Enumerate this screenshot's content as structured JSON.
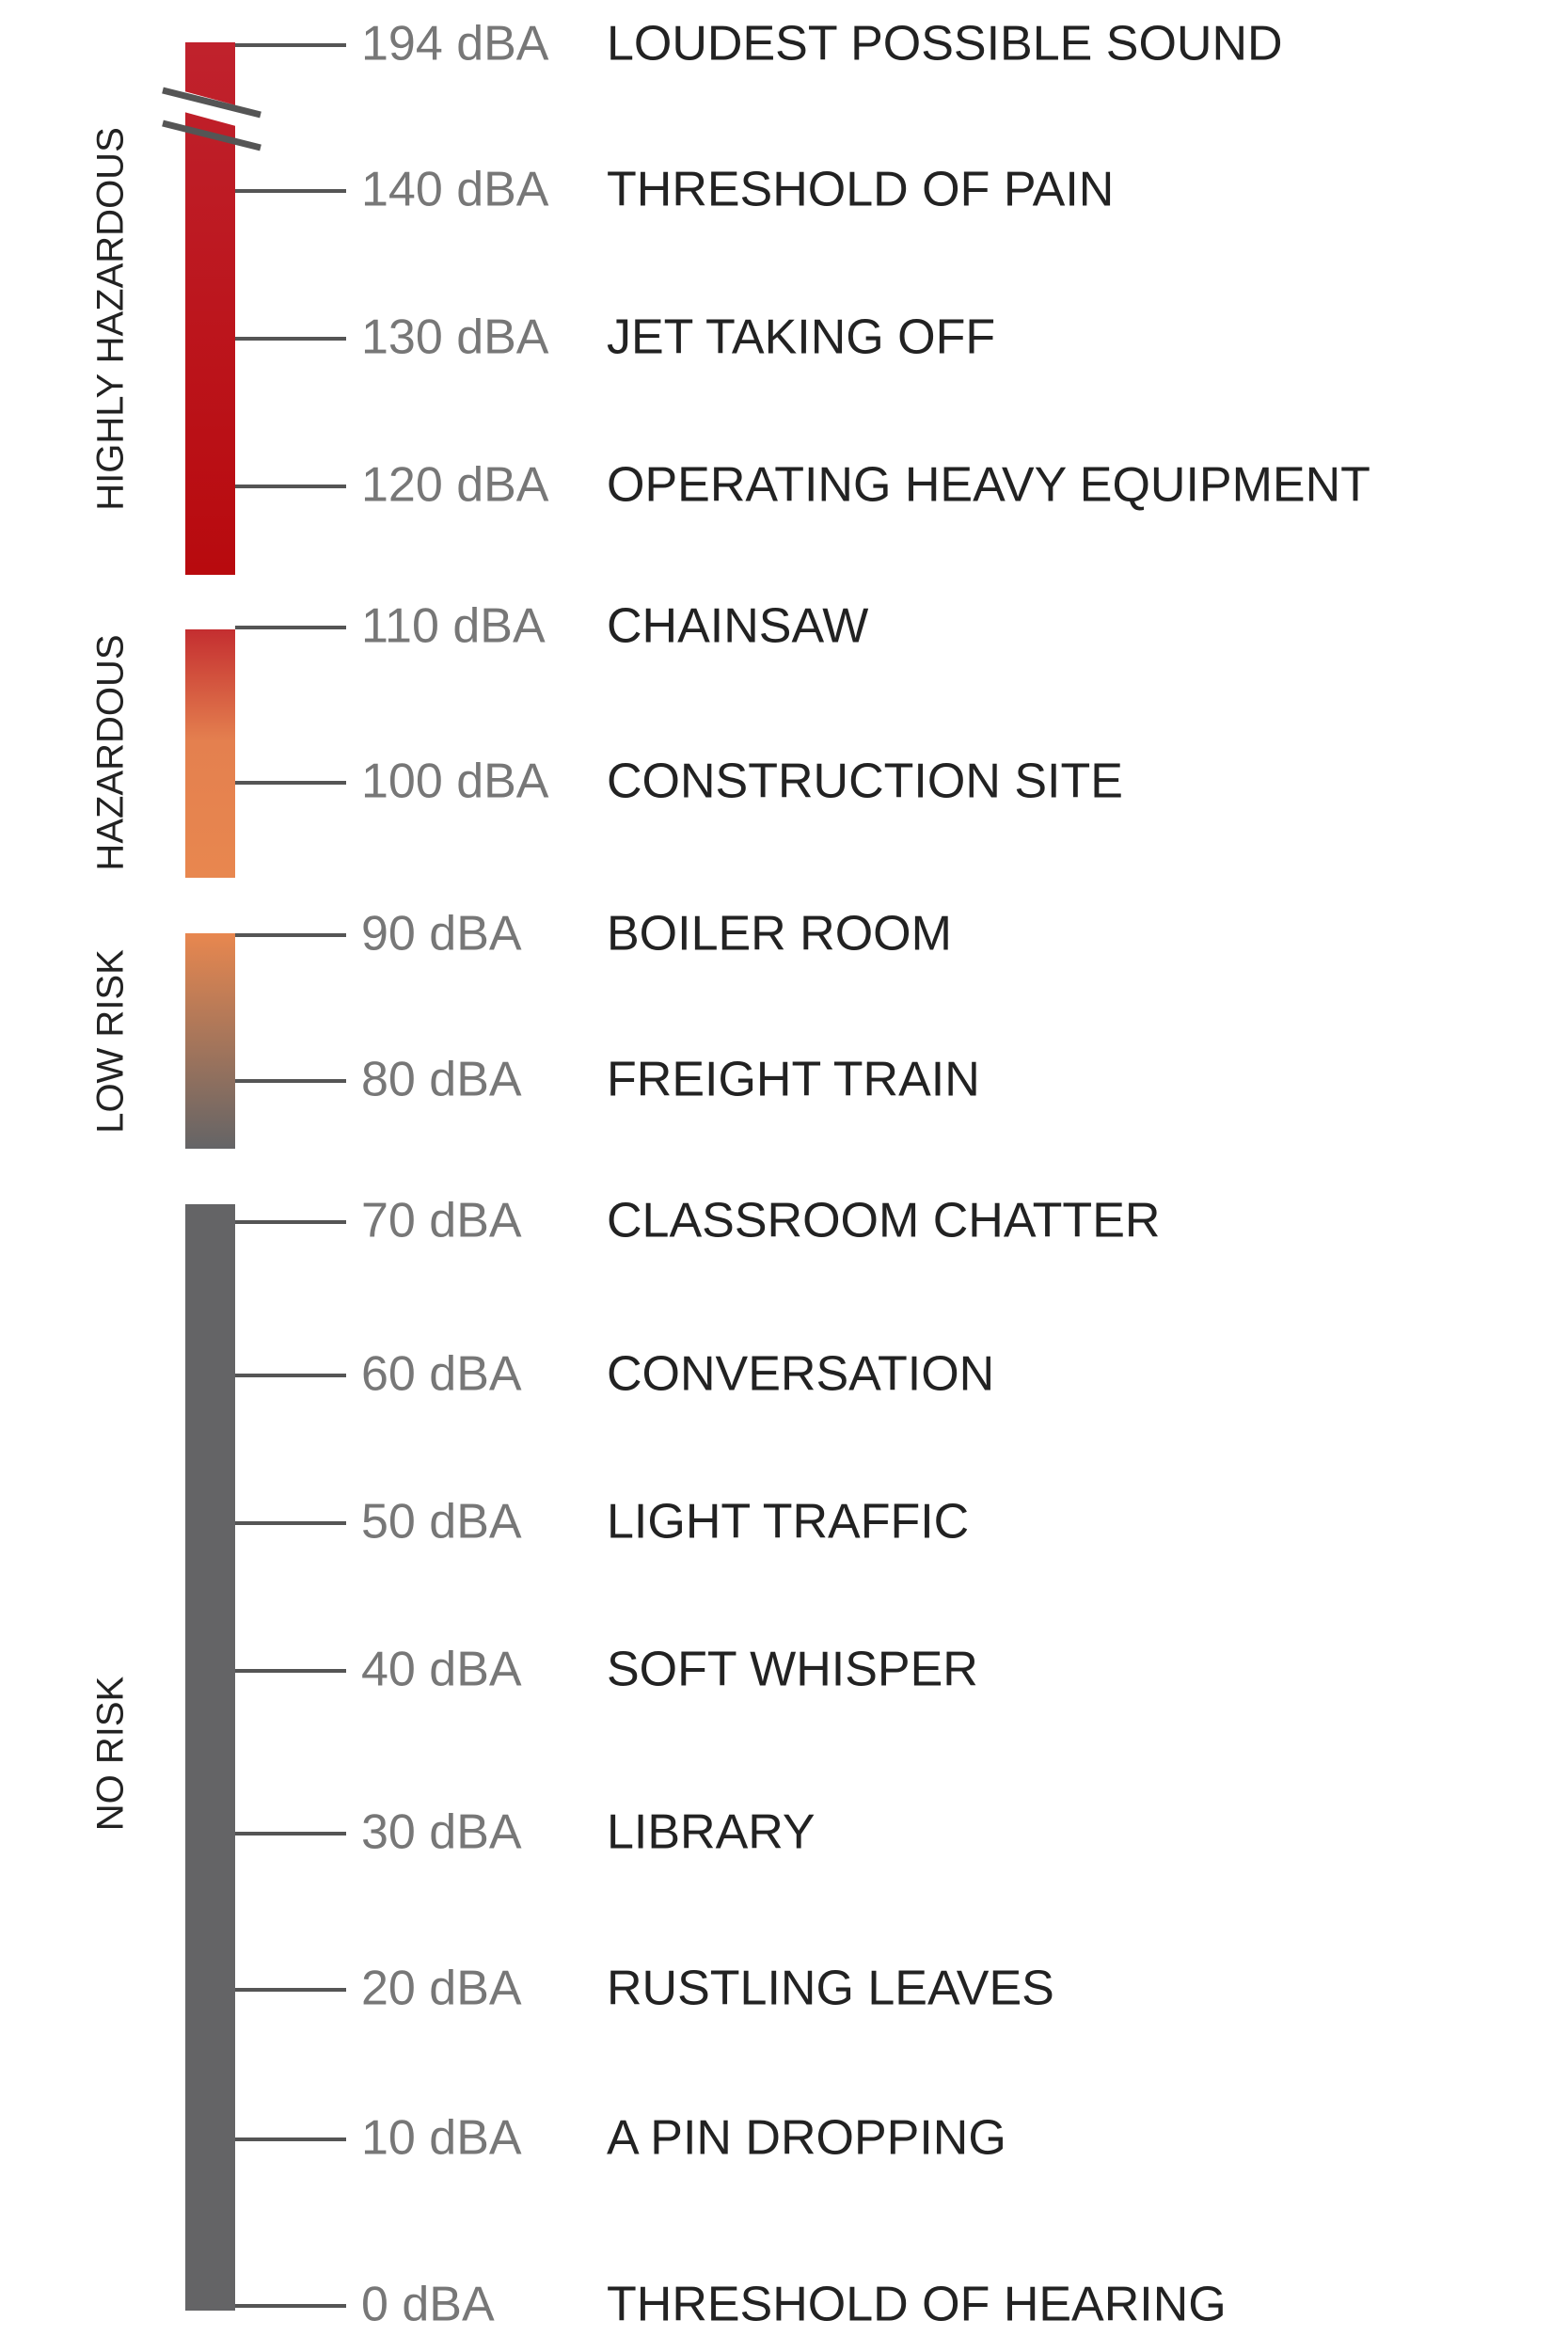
{
  "zones": [
    {
      "label": "HIGHLY HAZARDOUS"
    },
    {
      "label": "HAZARDOUS"
    },
    {
      "label": "LOW RISK"
    },
    {
      "label": "NO RISK"
    }
  ],
  "levels": [
    {
      "value": "194 dBA",
      "label": "LOUDEST POSSIBLE SOUND"
    },
    {
      "value": "140 dBA",
      "label": "THRESHOLD OF PAIN"
    },
    {
      "value": "130 dBA",
      "label": "JET TAKING OFF"
    },
    {
      "value": "120 dBA",
      "label": "OPERATING HEAVY EQUIPMENT"
    },
    {
      "value": "110 dBA",
      "label": "CHAINSAW"
    },
    {
      "value": "100 dBA",
      "label": "CONSTRUCTION SITE"
    },
    {
      "value": "90 dBA",
      "label": "BOILER ROOM"
    },
    {
      "value": "80 dBA",
      "label": "FREIGHT TRAIN"
    },
    {
      "value": "70 dBA",
      "label": "CLASSROOM CHATTER"
    },
    {
      "value": "60 dBA",
      "label": "CONVERSATION"
    },
    {
      "value": "50 dBA",
      "label": "LIGHT TRAFFIC"
    },
    {
      "value": "40 dBA",
      "label": "SOFT WHISPER"
    },
    {
      "value": "30 dBA",
      "label": "LIBRARY"
    },
    {
      "value": "20 dBA",
      "label": "RUSTLING LEAVES"
    },
    {
      "value": "10 dBA",
      "label": "A PIN DROPPING"
    },
    {
      "value": "0 dBA",
      "label": "THRESHOLD OF HEARING"
    }
  ]
}
